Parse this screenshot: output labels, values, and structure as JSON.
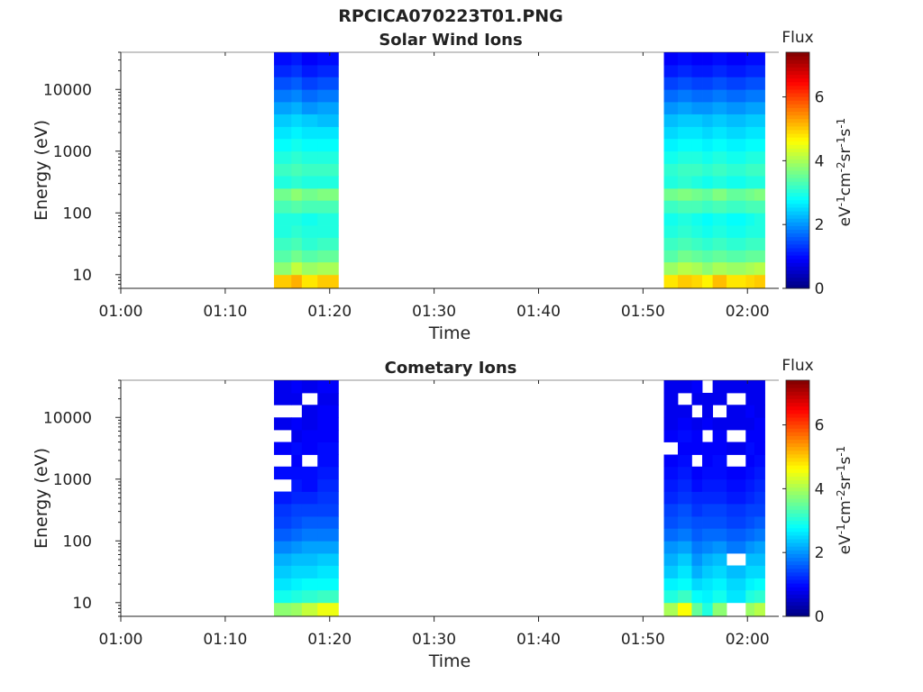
{
  "figure_title": "RPCICA070223T01.PNG",
  "chart_data": [
    {
      "type": "heatmap",
      "title": "Solar Wind Ions",
      "xlabel": "Time",
      "ylabel": "Energy (eV)",
      "x_ticks": [
        "01:00",
        "01:10",
        "01:20",
        "01:30",
        "01:40",
        "01:50",
        "02:00"
      ],
      "xlim": [
        "01:00",
        "02:03"
      ],
      "y_scale": "log",
      "y_ticks": [
        "10",
        "100",
        "1000",
        "10000"
      ],
      "ylim": [
        6,
        40000
      ],
      "colorbar": {
        "title": "Flux",
        "label": "eV-1cm-2sr-1s-1",
        "ticks": [
          "0",
          "2",
          "4",
          "6"
        ],
        "range": [
          0,
          7.4
        ],
        "colormap": "jet"
      },
      "data_intervals": [
        [
          "01:14:40",
          "01:20:50"
        ],
        [
          "01:52:00",
          "02:01:40"
        ]
      ],
      "time_columns": [
        [
          "01:14:40",
          "01:16:20"
        ],
        [
          "01:16:20",
          "01:17:20"
        ],
        [
          "01:17:20",
          "01:18:50"
        ],
        [
          "01:18:50",
          "01:20:50"
        ],
        [
          "01:52:00",
          "01:53:20"
        ],
        [
          "01:53:20",
          "01:54:40"
        ],
        [
          "01:54:40",
          "01:55:40"
        ],
        [
          "01:55:40",
          "01:56:40"
        ],
        [
          "01:56:40",
          "01:58:00"
        ],
        [
          "01:58:00",
          "01:59:50"
        ],
        [
          "01:59:50",
          "02:00:40"
        ],
        [
          "02:00:40",
          "02:01:40"
        ]
      ],
      "energy_bins_eV": [
        6,
        10,
        16,
        25,
        40,
        63,
        100,
        160,
        250,
        400,
        630,
        1000,
        1600,
        2500,
        4000,
        6300,
        10000,
        16000,
        25000,
        40000
      ],
      "flux_by_column": [
        [
          5.0,
          3.8,
          3.4,
          3.2,
          3.0,
          3.0,
          3.3,
          3.6,
          3.0,
          3.2,
          3.0,
          2.8,
          2.6,
          2.4,
          2.1,
          1.8,
          1.5,
          1.2,
          1.0
        ],
        [
          5.2,
          4.2,
          3.6,
          3.3,
          3.1,
          3.0,
          3.4,
          3.8,
          3.1,
          3.3,
          3.1,
          2.9,
          2.7,
          2.5,
          2.2,
          1.9,
          1.6,
          1.3,
          1.1
        ],
        [
          4.8,
          3.9,
          3.4,
          3.1,
          3.0,
          2.9,
          3.3,
          3.6,
          3.0,
          3.2,
          3.0,
          2.8,
          2.6,
          2.4,
          2.0,
          1.7,
          1.4,
          1.1,
          0.9
        ],
        [
          5.0,
          4.0,
          3.5,
          3.2,
          3.0,
          3.0,
          3.3,
          3.7,
          3.0,
          3.2,
          3.0,
          2.8,
          2.6,
          2.3,
          2.1,
          1.8,
          1.5,
          1.2,
          1.0
        ],
        [
          4.8,
          3.9,
          3.4,
          3.2,
          3.0,
          2.9,
          3.2,
          3.6,
          3.0,
          3.1,
          2.9,
          2.7,
          2.5,
          2.3,
          2.0,
          1.7,
          1.4,
          1.1,
          0.9
        ],
        [
          5.0,
          4.1,
          3.6,
          3.3,
          3.1,
          3.0,
          3.3,
          3.7,
          3.1,
          3.2,
          3.0,
          2.8,
          2.6,
          2.4,
          2.1,
          1.8,
          1.5,
          1.2,
          1.0
        ],
        [
          4.9,
          4.0,
          3.5,
          3.2,
          3.0,
          2.9,
          3.3,
          3.6,
          3.0,
          3.2,
          3.0,
          2.8,
          2.6,
          2.4,
          2.0,
          1.7,
          1.4,
          1.1,
          0.9
        ],
        [
          4.7,
          3.8,
          3.4,
          3.1,
          2.9,
          2.8,
          3.2,
          3.5,
          2.9,
          3.1,
          2.9,
          2.7,
          2.5,
          2.3,
          2.0,
          1.7,
          1.4,
          1.1,
          0.9
        ],
        [
          5.1,
          4.0,
          3.5,
          3.2,
          3.0,
          2.9,
          3.3,
          3.7,
          3.0,
          3.2,
          3.0,
          2.8,
          2.6,
          2.4,
          2.1,
          1.8,
          1.5,
          1.2,
          1.0
        ],
        [
          4.8,
          3.9,
          3.4,
          3.1,
          2.9,
          2.8,
          3.2,
          3.5,
          2.9,
          3.1,
          2.9,
          2.7,
          2.5,
          2.3,
          2.0,
          1.7,
          1.4,
          1.1,
          0.9
        ],
        [
          4.9,
          4.0,
          3.5,
          3.2,
          3.0,
          2.9,
          3.3,
          3.6,
          3.0,
          3.2,
          3.0,
          2.8,
          2.6,
          2.4,
          2.1,
          1.8,
          1.5,
          1.2,
          1.0
        ],
        [
          5.0,
          4.1,
          3.5,
          3.2,
          3.0,
          3.0,
          3.3,
          3.7,
          3.0,
          3.2,
          3.0,
          2.8,
          2.6,
          2.4,
          2.1,
          1.8,
          1.5,
          1.2,
          1.0
        ]
      ]
    },
    {
      "type": "heatmap",
      "title": "Cometary Ions",
      "xlabel": "Time",
      "ylabel": "Energy (eV)",
      "x_ticks": [
        "01:00",
        "01:10",
        "01:20",
        "01:30",
        "01:40",
        "01:50",
        "02:00"
      ],
      "xlim": [
        "01:00",
        "02:03"
      ],
      "y_scale": "log",
      "y_ticks": [
        "10",
        "100",
        "1000",
        "10000"
      ],
      "ylim": [
        6,
        40000
      ],
      "colorbar": {
        "title": "Flux",
        "label": "eV-1cm-2sr-1s-1",
        "ticks": [
          "0",
          "2",
          "4",
          "6"
        ],
        "range": [
          0,
          7.4
        ],
        "colormap": "jet"
      },
      "data_intervals": [
        [
          "01:14:40",
          "01:20:50"
        ],
        [
          "01:52:00",
          "02:01:40"
        ]
      ],
      "time_columns": [
        [
          "01:14:40",
          "01:16:20"
        ],
        [
          "01:16:20",
          "01:17:20"
        ],
        [
          "01:17:20",
          "01:18:50"
        ],
        [
          "01:18:50",
          "01:20:50"
        ],
        [
          "01:52:00",
          "01:53:20"
        ],
        [
          "01:53:20",
          "01:54:40"
        ],
        [
          "01:54:40",
          "01:55:40"
        ],
        [
          "01:55:40",
          "01:56:40"
        ],
        [
          "01:56:40",
          "01:58:00"
        ],
        [
          "01:58:00",
          "01:59:50"
        ],
        [
          "01:59:50",
          "02:00:40"
        ],
        [
          "02:00:40",
          "02:01:40"
        ]
      ],
      "energy_bins_eV": [
        6,
        10,
        16,
        25,
        40,
        63,
        100,
        160,
        250,
        400,
        630,
        1000,
        1600,
        2500,
        4000,
        6300,
        10000,
        16000,
        25000,
        40000
      ],
      "flux_by_column": [
        [
          3.8,
          2.9,
          2.6,
          2.4,
          2.2,
          1.9,
          1.6,
          1.4,
          1.3,
          1.1,
          null,
          1.0,
          null,
          0.9,
          null,
          0.8,
          null,
          0.8,
          0.8
        ],
        [
          3.9,
          3.0,
          2.7,
          2.5,
          2.3,
          2.0,
          1.7,
          1.5,
          1.4,
          1.2,
          1.1,
          1.0,
          0.9,
          1.0,
          0.8,
          0.9,
          null,
          0.8,
          0.9
        ],
        [
          4.2,
          3.1,
          2.8,
          2.5,
          2.3,
          2.1,
          1.8,
          1.6,
          1.4,
          1.2,
          1.0,
          1.0,
          null,
          0.9,
          0.9,
          0.8,
          0.8,
          null,
          0.8
        ],
        [
          4.5,
          3.2,
          2.8,
          2.6,
          2.4,
          2.1,
          1.8,
          1.6,
          1.4,
          1.3,
          1.2,
          1.1,
          1.0,
          1.0,
          0.9,
          0.9,
          0.9,
          0.8,
          0.9
        ],
        [
          4.0,
          3.0,
          2.7,
          2.4,
          2.2,
          2.0,
          1.7,
          1.5,
          1.4,
          1.2,
          1.1,
          1.0,
          0.9,
          null,
          0.9,
          0.8,
          0.8,
          0.8,
          0.8
        ],
        [
          4.6,
          3.2,
          2.8,
          2.6,
          2.4,
          2.1,
          1.8,
          1.6,
          1.5,
          1.3,
          1.2,
          1.1,
          1.0,
          0.9,
          1.0,
          0.9,
          0.8,
          null,
          0.8
        ],
        [
          3.5,
          2.8,
          2.5,
          2.2,
          2.0,
          1.8,
          1.6,
          1.5,
          1.3,
          1.2,
          1.0,
          0.9,
          null,
          0.9,
          0.9,
          0.8,
          null,
          0.8,
          0.9
        ],
        [
          3.0,
          2.7,
          2.6,
          2.4,
          2.2,
          1.9,
          1.7,
          1.5,
          1.4,
          1.2,
          1.1,
          1.0,
          0.9,
          0.9,
          null,
          0.9,
          0.8,
          0.8,
          null
        ],
        [
          3.8,
          2.9,
          2.7,
          2.5,
          2.3,
          2.0,
          1.7,
          1.5,
          1.4,
          1.2,
          1.1,
          1.0,
          1.0,
          0.9,
          0.9,
          0.8,
          null,
          0.8,
          0.8
        ],
        [
          null,
          2.6,
          2.5,
          2.3,
          null,
          1.8,
          1.6,
          1.4,
          1.3,
          1.1,
          1.0,
          0.9,
          null,
          0.8,
          null,
          0.8,
          0.8,
          null,
          0.8
        ],
        [
          3.9,
          3.0,
          2.7,
          2.5,
          2.3,
          2.0,
          1.7,
          1.5,
          1.4,
          1.2,
          1.1,
          1.0,
          0.9,
          1.0,
          0.9,
          0.8,
          0.9,
          0.8,
          0.8
        ],
        [
          4.1,
          3.1,
          2.8,
          2.5,
          2.3,
          2.1,
          1.8,
          1.6,
          1.4,
          1.3,
          1.2,
          1.1,
          1.0,
          0.9,
          0.9,
          0.9,
          0.8,
          0.8,
          0.8
        ]
      ]
    }
  ]
}
